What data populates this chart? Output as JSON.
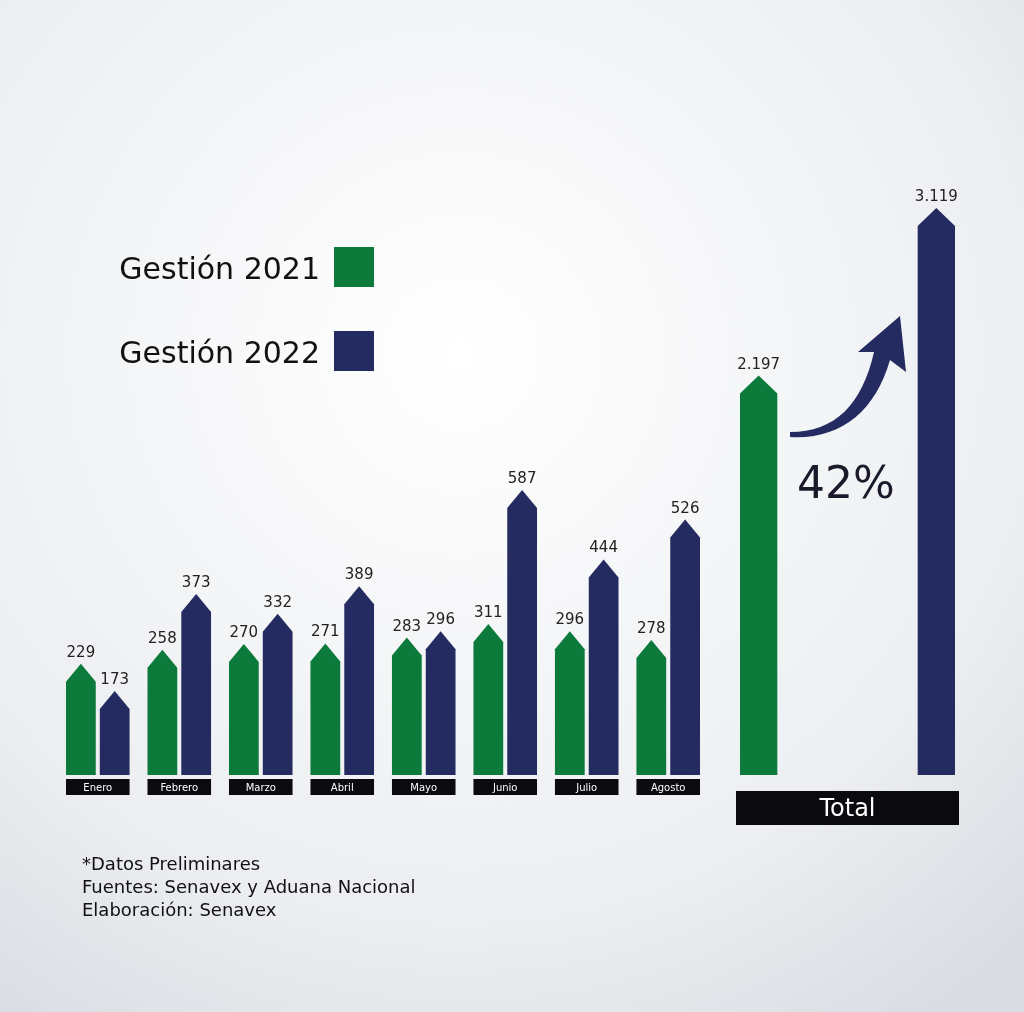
{
  "chart_data": [
    {
      "type": "bar",
      "categories": [
        "Enero",
        "Febrero",
        "Marzo",
        "Abril",
        "Mayo",
        "Junio",
        "Julio",
        "Agosto"
      ],
      "series": [
        {
          "name": "Gestión 2021",
          "color": "#0b7a3b",
          "values": [
            229,
            258,
            270,
            271,
            283,
            311,
            296,
            278
          ]
        },
        {
          "name": "Gestión 2022",
          "color": "#242b60",
          "values": [
            173,
            373,
            332,
            389,
            296,
            587,
            444,
            526
          ]
        }
      ],
      "data_labels": true,
      "legend": "top left",
      "annotations": [
        "*Datos Preliminares",
        "Fuentes: Senavex y Aduana Nacional",
        "Elaboración: Senavex"
      ]
    },
    {
      "type": "bar",
      "categories": [
        null,
        null
      ],
      "xlabel": "Total",
      "series": [
        {
          "colors": [
            "#0b7a3b",
            "#242b60"
          ],
          "values": [
            2197,
            3119
          ],
          "value_labels": [
            "2.197",
            "3.119"
          ]
        }
      ],
      "annotations": [
        "42%"
      ]
    }
  ]
}
